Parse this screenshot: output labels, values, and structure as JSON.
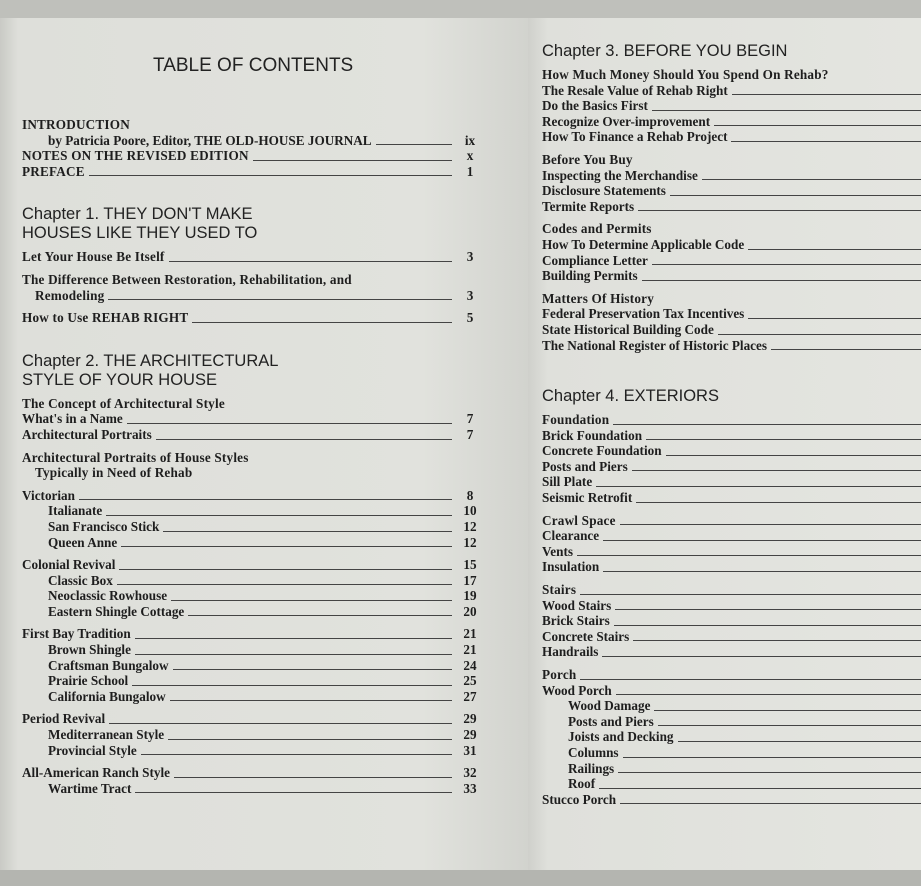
{
  "left": {
    "title": "TABLE OF CONTENTS",
    "groups": [
      {
        "entries": [
          {
            "label": "INTRODUCTION",
            "page": "",
            "level": 0,
            "head": true,
            "nolead": true
          },
          {
            "label": "by Patricia Poore, Editor, THE OLD-HOUSE JOURNAL",
            "page": "ix",
            "level": 2
          },
          {
            "label": "NOTES ON THE REVISED EDITION",
            "page": "x",
            "level": 0,
            "head": true
          },
          {
            "label": "PREFACE",
            "page": "1",
            "level": 0,
            "head": true
          }
        ]
      },
      {
        "chapter": "Chapter 1. THEY DON'T MAKE\nHOUSES LIKE THEY USED TO",
        "entries": [
          {
            "label": "Let Your House Be Itself",
            "page": "3",
            "level": 0,
            "head": true
          }
        ]
      },
      {
        "entries": [
          {
            "label": "The Difference Between Restoration, Rehabilitation, and",
            "page": "",
            "level": 0,
            "head": true,
            "nolead": true
          },
          {
            "label": "Remodeling",
            "page": "3",
            "level": 1,
            "head": true
          }
        ]
      },
      {
        "entries": [
          {
            "label": "How to Use REHAB RIGHT",
            "page": "5",
            "level": 0,
            "head": true
          }
        ]
      },
      {
        "chapter": "Chapter 2. THE ARCHITECTURAL\nSTYLE OF YOUR HOUSE",
        "entries": [
          {
            "label": "The Concept of Architectural Style",
            "page": "",
            "level": 0,
            "head": true,
            "nolead": true
          },
          {
            "label": "What's in a Name",
            "page": "7",
            "level": 0
          },
          {
            "label": "Architectural Portraits",
            "page": "7",
            "level": 0
          }
        ]
      },
      {
        "entries": [
          {
            "label": "Architectural Portraits of House Styles",
            "page": "",
            "level": 0,
            "head": true,
            "nolead": true
          },
          {
            "label": "Typically in Need of Rehab",
            "page": "",
            "level": 1,
            "head": true,
            "nolead": true
          }
        ]
      },
      {
        "entries": [
          {
            "label": "Victorian",
            "page": "8",
            "level": 0
          },
          {
            "label": "Italianate",
            "page": "10",
            "level": 2
          },
          {
            "label": "San Francisco Stick",
            "page": "12",
            "level": 2
          },
          {
            "label": "Queen Anne",
            "page": "12",
            "level": 2
          }
        ]
      },
      {
        "entries": [
          {
            "label": "Colonial Revival",
            "page": "15",
            "level": 0
          },
          {
            "label": "Classic Box",
            "page": "17",
            "level": 2
          },
          {
            "label": "Neoclassic Rowhouse",
            "page": "19",
            "level": 2
          },
          {
            "label": "Eastern Shingle Cottage",
            "page": "20",
            "level": 2
          }
        ]
      },
      {
        "entries": [
          {
            "label": "First Bay Tradition",
            "page": "21",
            "level": 0
          },
          {
            "label": "Brown Shingle",
            "page": "21",
            "level": 2
          },
          {
            "label": "Craftsman Bungalow",
            "page": "24",
            "level": 2
          },
          {
            "label": "Prairie School",
            "page": "25",
            "level": 2
          },
          {
            "label": "California Bungalow",
            "page": "27",
            "level": 2
          }
        ]
      },
      {
        "entries": [
          {
            "label": "Period Revival",
            "page": "29",
            "level": 0
          },
          {
            "label": "Mediterranean Style",
            "page": "29",
            "level": 2
          },
          {
            "label": "Provincial Style",
            "page": "31",
            "level": 2
          }
        ]
      },
      {
        "entries": [
          {
            "label": "All-American Ranch Style",
            "page": "32",
            "level": 0
          },
          {
            "label": "Wartime Tract",
            "page": "33",
            "level": 2
          }
        ]
      }
    ]
  },
  "right": {
    "groups": [
      {
        "chapter": "Chapter 3. BEFORE YOU BEGIN",
        "entries": [
          {
            "label": "How Much Money Should You Spend On Rehab?",
            "level": 0,
            "head": true,
            "nolead": true
          },
          {
            "label": "The Resale Value of Rehab Right",
            "level": 0
          },
          {
            "label": "Do the Basics First",
            "level": 0
          },
          {
            "label": "Recognize Over-improvement",
            "level": 0
          },
          {
            "label": "How To Finance a Rehab Project",
            "level": 0
          }
        ]
      },
      {
        "entries": [
          {
            "label": "Before You Buy",
            "level": 0,
            "head": true,
            "nolead": true
          },
          {
            "label": "Inspecting the Merchandise",
            "level": 0
          },
          {
            "label": "Disclosure Statements",
            "level": 0
          },
          {
            "label": "Termite Reports",
            "level": 0
          }
        ]
      },
      {
        "entries": [
          {
            "label": "Codes and Permits",
            "level": 0,
            "head": true,
            "nolead": true
          },
          {
            "label": "How To Determine Applicable Code",
            "level": 0
          },
          {
            "label": "Compliance Letter",
            "level": 0
          },
          {
            "label": "Building Permits",
            "level": 0
          }
        ]
      },
      {
        "entries": [
          {
            "label": "Matters Of History",
            "level": 0,
            "head": true,
            "nolead": true
          },
          {
            "label": "Federal Preservation Tax Incentives",
            "level": 0
          },
          {
            "label": "State Historical Building Code",
            "level": 0
          },
          {
            "label": "The National Register of Historic Places",
            "level": 0
          }
        ]
      },
      {
        "chapter": "Chapter 4. EXTERIORS",
        "entries": [
          {
            "label": "Foundation",
            "level": 0,
            "head": true
          },
          {
            "label": "Brick Foundation",
            "level": 0
          },
          {
            "label": "Concrete Foundation",
            "level": 0
          },
          {
            "label": "Posts and Piers",
            "level": 0
          },
          {
            "label": "Sill Plate",
            "level": 0
          },
          {
            "label": "Seismic Retrofit",
            "level": 0
          }
        ]
      },
      {
        "entries": [
          {
            "label": "Crawl Space",
            "level": 0,
            "head": true
          },
          {
            "label": "Clearance",
            "level": 0
          },
          {
            "label": "Vents",
            "level": 0
          },
          {
            "label": "Insulation",
            "level": 0
          }
        ]
      },
      {
        "entries": [
          {
            "label": "Stairs",
            "level": 0,
            "head": true
          },
          {
            "label": "Wood Stairs",
            "level": 0
          },
          {
            "label": "Brick Stairs",
            "level": 0
          },
          {
            "label": "Concrete Stairs",
            "level": 0
          },
          {
            "label": "Handrails",
            "level": 0
          }
        ]
      },
      {
        "entries": [
          {
            "label": "Porch",
            "level": 0,
            "head": true
          },
          {
            "label": "Wood Porch",
            "level": 0
          },
          {
            "label": "Wood Damage",
            "level": 2
          },
          {
            "label": "Posts and Piers",
            "level": 2
          },
          {
            "label": "Joists and Decking",
            "level": 2
          },
          {
            "label": "Columns",
            "level": 2
          },
          {
            "label": "Railings",
            "level": 2
          },
          {
            "label": "Roof",
            "level": 2
          },
          {
            "label": "Stucco Porch",
            "level": 0
          }
        ]
      }
    ]
  }
}
